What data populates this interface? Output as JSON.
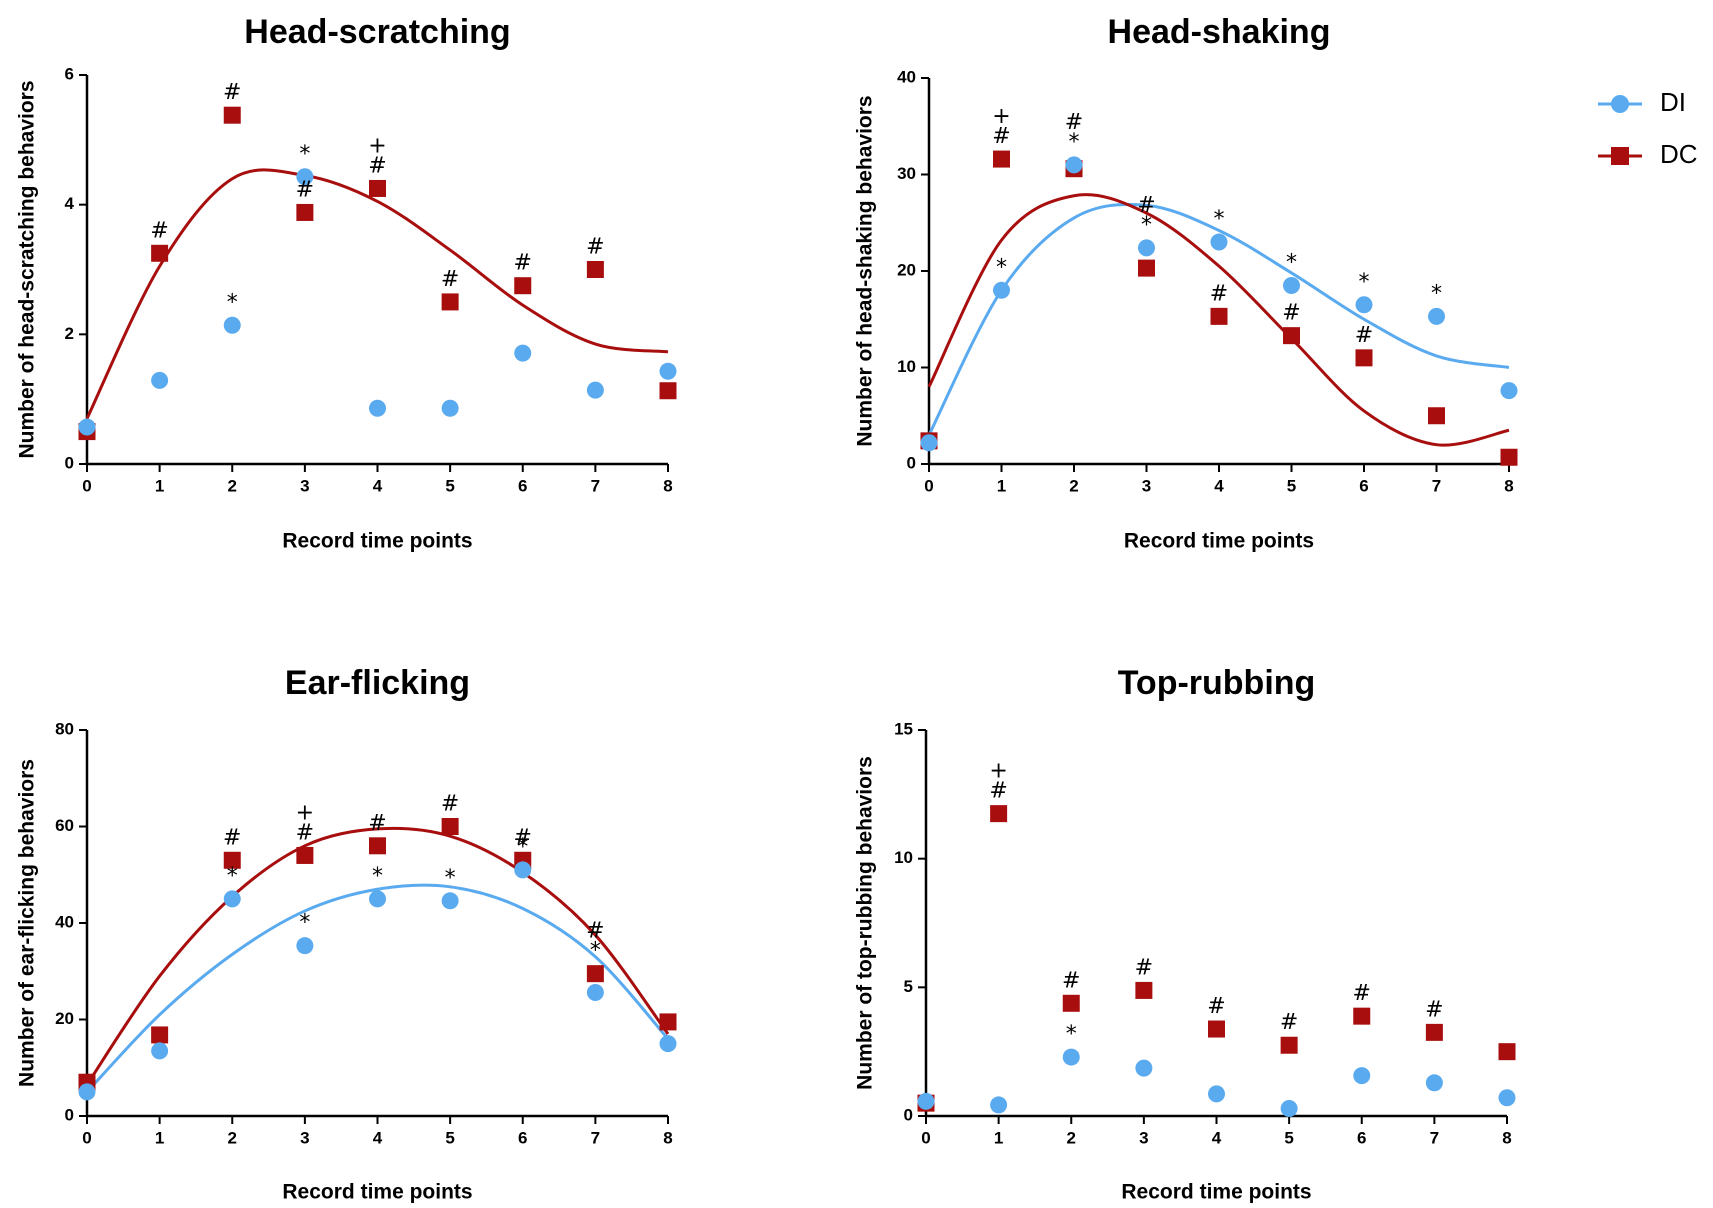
{
  "legend": {
    "items": [
      {
        "name": "DI",
        "color": "#5aaaf0",
        "marker": "circle"
      },
      {
        "name": "DC",
        "color": "#a80e0e",
        "marker": "square"
      }
    ]
  },
  "chart_data": [
    {
      "id": "head-scratching",
      "type": "scatter",
      "title": "Head-scratching",
      "xlabel": "Record time points",
      "ylabel": "Number of head-scratching behaviors",
      "xlim": [
        0,
        8
      ],
      "ylim": [
        0,
        6
      ],
      "xticks": [
        0,
        1,
        2,
        3,
        4,
        5,
        6,
        7,
        8
      ],
      "yticks": [
        0,
        2,
        4,
        6
      ],
      "series": [
        {
          "name": "DI",
          "color": "#5aaaf0",
          "marker": "circle",
          "x": [
            0,
            1,
            2,
            3,
            4,
            5,
            6,
            7,
            8
          ],
          "values": [
            0.57,
            1.29,
            2.14,
            4.43,
            0.86,
            0.86,
            1.71,
            1.14,
            1.43
          ],
          "fit": null
        },
        {
          "name": "DC",
          "color": "#a80e0e",
          "marker": "square",
          "x": [
            0,
            1,
            2,
            3,
            4,
            5,
            6,
            7,
            8
          ],
          "values": [
            0.5,
            3.25,
            5.38,
            3.88,
            4.25,
            2.5,
            2.75,
            3.0,
            1.13
          ],
          "fit": [
            0.7,
            3.05,
            4.4,
            4.45,
            4.05,
            3.3,
            2.45,
            1.85,
            1.73
          ]
        }
      ],
      "annotations": [
        {
          "x": 1,
          "y": 3.25,
          "text": "#"
        },
        {
          "x": 2,
          "y": 5.38,
          "text": "#"
        },
        {
          "x": 2,
          "y": 2.14,
          "text": "*"
        },
        {
          "x": 3,
          "y": 4.43,
          "text": "*"
        },
        {
          "x": 3,
          "y": 3.88,
          "text": "#"
        },
        {
          "x": 4,
          "y": 4.25,
          "text": "#"
        },
        {
          "x": 4,
          "y": 4.25,
          "text": "+"
        },
        {
          "x": 5,
          "y": 2.5,
          "text": "#"
        },
        {
          "x": 6,
          "y": 2.75,
          "text": "#"
        },
        {
          "x": 7,
          "y": 3.0,
          "text": "#"
        }
      ]
    },
    {
      "id": "head-shaking",
      "type": "scatter",
      "title": "Head-shaking",
      "xlabel": "Record time points",
      "ylabel": "Number of head-shaking behaviors",
      "xlim": [
        0,
        8
      ],
      "ylim": [
        0,
        40
      ],
      "xticks": [
        0,
        1,
        2,
        3,
        4,
        5,
        6,
        7,
        8
      ],
      "yticks": [
        0,
        10,
        20,
        30,
        40
      ],
      "series": [
        {
          "name": "DI",
          "color": "#5aaaf0",
          "marker": "circle",
          "x": [
            0,
            1,
            2,
            3,
            4,
            5,
            6,
            7,
            8
          ],
          "values": [
            2.2,
            18,
            31,
            22.4,
            23,
            18.5,
            16.5,
            15.3,
            7.6
          ],
          "fit": [
            3.0,
            18.0,
            25.5,
            26.8,
            24.2,
            19.8,
            15.0,
            11.2,
            10.0
          ]
        },
        {
          "name": "DC",
          "color": "#a80e0e",
          "marker": "square",
          "x": [
            0,
            1,
            2,
            3,
            4,
            5,
            6,
            7,
            8
          ],
          "values": [
            2.4,
            31.6,
            30.6,
            20.3,
            15.3,
            13.3,
            11.0,
            5.0,
            0.7
          ],
          "fit": [
            8.0,
            23.2,
            27.8,
            26.0,
            20.5,
            13.0,
            5.5,
            2.0,
            3.5
          ]
        }
      ],
      "annotations": [
        {
          "x": 1,
          "y": 18,
          "text": "*"
        },
        {
          "x": 1,
          "y": 31.6,
          "text": "#"
        },
        {
          "x": 1,
          "y": 31.6,
          "text": "+"
        },
        {
          "x": 2,
          "y": 31,
          "text": "*"
        },
        {
          "x": 2,
          "y": 31,
          "text": "#"
        },
        {
          "x": 3,
          "y": 22.4,
          "text": "*"
        },
        {
          "x": 3,
          "y": 22.4,
          "text": "#"
        },
        {
          "x": 4,
          "y": 23,
          "text": "*"
        },
        {
          "x": 4,
          "y": 15.3,
          "text": "#"
        },
        {
          "x": 5,
          "y": 18.5,
          "text": "*"
        },
        {
          "x": 5,
          "y": 13.3,
          "text": "#"
        },
        {
          "x": 6,
          "y": 16.5,
          "text": "*"
        },
        {
          "x": 6,
          "y": 11.0,
          "text": "#"
        },
        {
          "x": 7,
          "y": 15.3,
          "text": "*"
        }
      ]
    },
    {
      "id": "ear-flicking",
      "type": "scatter",
      "title": "Ear-flicking",
      "xlabel": "Record time points",
      "ylabel": "Number of ear-flicking behaviors",
      "xlim": [
        0,
        8
      ],
      "ylim": [
        0,
        80
      ],
      "xticks": [
        0,
        1,
        2,
        3,
        4,
        5,
        6,
        7,
        8
      ],
      "yticks": [
        0,
        20,
        40,
        60,
        80
      ],
      "series": [
        {
          "name": "DI",
          "color": "#5aaaf0",
          "marker": "circle",
          "x": [
            0,
            1,
            2,
            3,
            4,
            5,
            6,
            7,
            8
          ],
          "values": [
            5,
            13.5,
            45,
            35.3,
            45,
            44.6,
            51,
            25.6,
            15
          ],
          "fit": [
            5.0,
            21.0,
            33.5,
            42.5,
            47.0,
            47.5,
            43.0,
            33.0,
            16.0
          ]
        },
        {
          "name": "DC",
          "color": "#a80e0e",
          "marker": "square",
          "x": [
            0,
            1,
            2,
            3,
            4,
            5,
            6,
            7,
            8
          ],
          "values": [
            7,
            16.8,
            53,
            54,
            56,
            60,
            53,
            29.5,
            19.5
          ],
          "fit": [
            6.5,
            29.0,
            45.5,
            56.0,
            59.5,
            58.0,
            50.5,
            37.5,
            17.0
          ]
        }
      ],
      "annotations": [
        {
          "x": 2,
          "y": 45,
          "text": "*"
        },
        {
          "x": 2,
          "y": 53,
          "text": "#"
        },
        {
          "x": 3,
          "y": 35.3,
          "text": "*"
        },
        {
          "x": 3,
          "y": 54,
          "text": "#"
        },
        {
          "x": 3,
          "y": 54,
          "text": "+"
        },
        {
          "x": 4,
          "y": 45,
          "text": "*"
        },
        {
          "x": 4,
          "y": 56,
          "text": "#"
        },
        {
          "x": 5,
          "y": 44.6,
          "text": "*"
        },
        {
          "x": 5,
          "y": 60,
          "text": "#"
        },
        {
          "x": 6,
          "y": 51,
          "text": "*"
        },
        {
          "x": 6,
          "y": 53,
          "text": "#"
        },
        {
          "x": 7,
          "y": 29.5,
          "text": "*"
        },
        {
          "x": 7,
          "y": 29.5,
          "text": "#"
        }
      ]
    },
    {
      "id": "top-rubbing",
      "type": "scatter",
      "title": "Top-rubbing",
      "xlabel": "Record time points",
      "ylabel": "Number of top-rubbing behaviors",
      "xlim": [
        0,
        8
      ],
      "ylim": [
        0,
        15
      ],
      "xticks": [
        0,
        1,
        2,
        3,
        4,
        5,
        6,
        7,
        8
      ],
      "yticks": [
        0,
        5,
        10,
        15
      ],
      "series": [
        {
          "name": "DI",
          "color": "#5aaaf0",
          "marker": "circle",
          "x": [
            0,
            1,
            2,
            3,
            4,
            5,
            6,
            7,
            8
          ],
          "values": [
            0.57,
            0.43,
            2.29,
            1.86,
            0.86,
            0.29,
            1.57,
            1.29,
            0.71
          ],
          "fit": null
        },
        {
          "name": "DC",
          "color": "#a80e0e",
          "marker": "square",
          "x": [
            0,
            1,
            2,
            3,
            4,
            5,
            6,
            7,
            8
          ],
          "values": [
            0.5,
            11.75,
            4.38,
            4.88,
            3.38,
            2.75,
            3.88,
            3.25,
            2.5
          ],
          "fit": null
        }
      ],
      "annotations": [
        {
          "x": 1,
          "y": 11.75,
          "text": "#"
        },
        {
          "x": 1,
          "y": 11.75,
          "text": "+"
        },
        {
          "x": 2,
          "y": 2.29,
          "text": "*"
        },
        {
          "x": 2,
          "y": 4.38,
          "text": "#"
        },
        {
          "x": 3,
          "y": 4.88,
          "text": "#"
        },
        {
          "x": 4,
          "y": 3.38,
          "text": "#"
        },
        {
          "x": 5,
          "y": 2.75,
          "text": "#"
        },
        {
          "x": 6,
          "y": 3.88,
          "text": "#"
        },
        {
          "x": 7,
          "y": 3.25,
          "text": "#"
        }
      ]
    }
  ]
}
